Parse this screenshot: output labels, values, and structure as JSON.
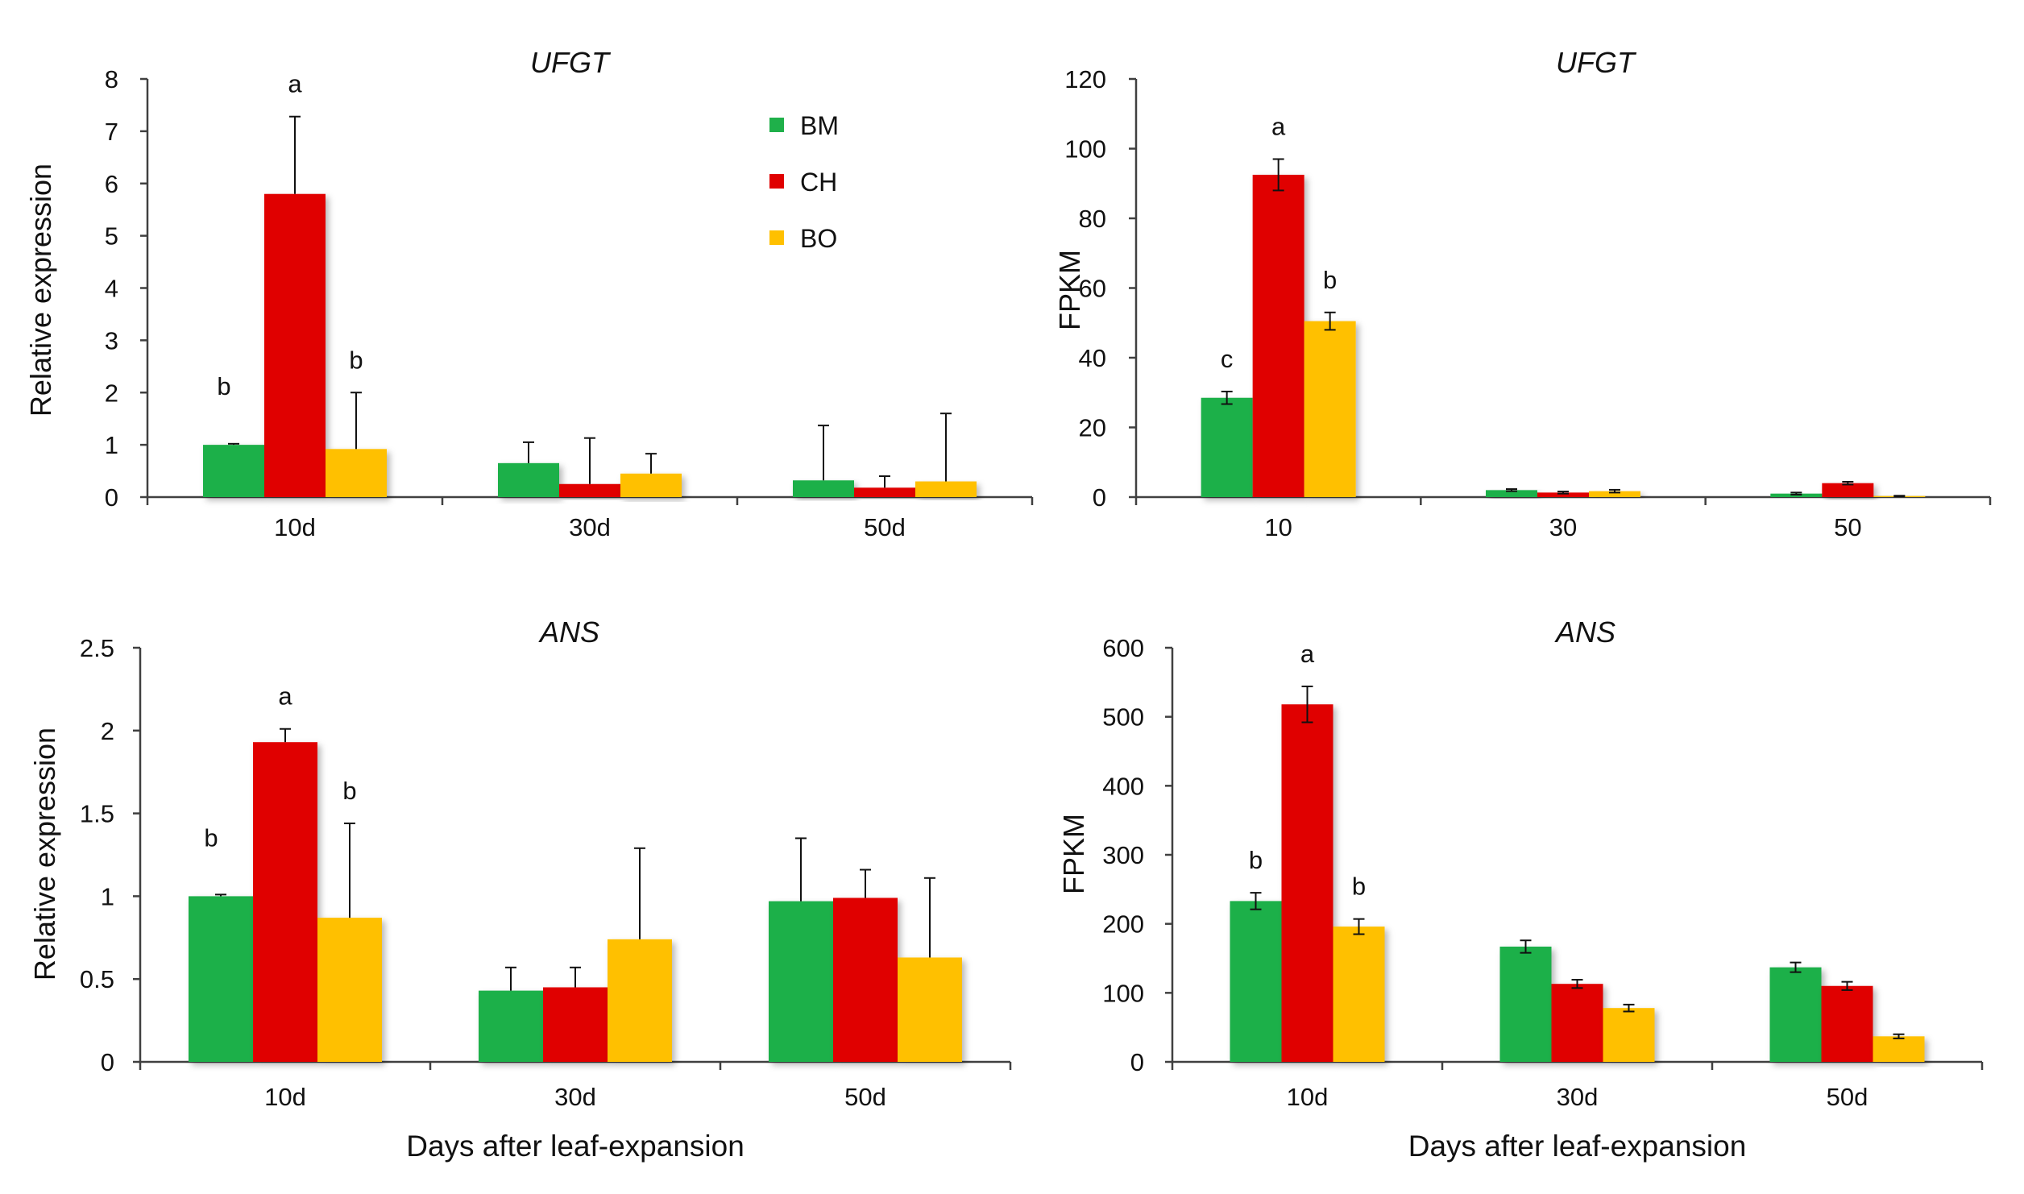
{
  "colors": {
    "BM": "#1fb04a",
    "CH": "#e00000",
    "BO": "#ffc000",
    "axis": "#404040",
    "err": "#111111"
  },
  "legend": [
    {
      "name": "BM",
      "label": "BM"
    },
    {
      "name": "CH",
      "label": "CH"
    },
    {
      "name": "BO",
      "label": "BO"
    }
  ],
  "chart_data": [
    {
      "type": "bar",
      "id": "ufgt-rel",
      "title": "UFGT",
      "ylabel": "Relative expression",
      "xlabel": "",
      "ylim": [
        0,
        8
      ],
      "yticks": [
        0,
        1,
        2,
        3,
        4,
        5,
        6,
        7,
        8
      ],
      "categories": [
        "10d",
        "30d",
        "50d"
      ],
      "error_style": "up",
      "series": [
        {
          "name": "BM",
          "values": [
            1.0,
            0.65,
            0.32
          ],
          "errors": [
            0.02,
            0.4,
            1.05
          ],
          "letters": [
            "b",
            "",
            ""
          ]
        },
        {
          "name": "CH",
          "values": [
            5.8,
            0.25,
            0.18
          ],
          "errors": [
            1.48,
            0.88,
            0.22
          ],
          "letters": [
            "a",
            "",
            ""
          ]
        },
        {
          "name": "BO",
          "values": [
            0.92,
            0.45,
            0.3
          ],
          "errors": [
            1.08,
            0.38,
            1.3
          ],
          "letters": [
            "b",
            "",
            ""
          ]
        }
      ]
    },
    {
      "type": "bar",
      "id": "ufgt-fpkm",
      "title": "UFGT",
      "ylabel": "FPKM",
      "xlabel": "",
      "ylim": [
        0,
        120
      ],
      "yticks": [
        0,
        20,
        40,
        60,
        80,
        100,
        120
      ],
      "categories": [
        "10",
        "30",
        "50"
      ],
      "error_style": "both",
      "series": [
        {
          "name": "BM",
          "values": [
            28.5,
            2.0,
            1.0
          ],
          "errors": [
            1.8,
            0.3,
            0.3
          ],
          "letters": [
            "c",
            "",
            ""
          ]
        },
        {
          "name": "CH",
          "values": [
            92.5,
            1.3,
            4.0
          ],
          "errors": [
            4.5,
            0.3,
            0.4
          ],
          "letters": [
            "a",
            "",
            ""
          ]
        },
        {
          "name": "BO",
          "values": [
            50.5,
            1.7,
            0.3
          ],
          "errors": [
            2.5,
            0.4,
            0.1
          ],
          "letters": [
            "b",
            "",
            ""
          ]
        }
      ]
    },
    {
      "type": "bar",
      "id": "ans-rel",
      "title": "ANS",
      "ylabel": "Relative expression",
      "xlabel": "Days after leaf-expansion",
      "ylim": [
        0,
        2.5
      ],
      "yticks": [
        0,
        0.5,
        1,
        1.5,
        2,
        2.5
      ],
      "categories": [
        "10d",
        "30d",
        "50d"
      ],
      "error_style": "up",
      "series": [
        {
          "name": "BM",
          "values": [
            1.0,
            0.43,
            0.97
          ],
          "errors": [
            0.01,
            0.14,
            0.38
          ],
          "letters": [
            "b",
            "",
            ""
          ]
        },
        {
          "name": "CH",
          "values": [
            1.93,
            0.45,
            0.99
          ],
          "errors": [
            0.08,
            0.12,
            0.17
          ],
          "letters": [
            "a",
            "",
            ""
          ]
        },
        {
          "name": "BO",
          "values": [
            0.87,
            0.74,
            0.63
          ],
          "errors": [
            0.57,
            0.55,
            0.48
          ],
          "letters": [
            "b",
            "",
            ""
          ]
        }
      ]
    },
    {
      "type": "bar",
      "id": "ans-fpkm",
      "title": "ANS",
      "ylabel": "FPKM",
      "xlabel": "Days after leaf-expansion",
      "ylim": [
        0,
        600
      ],
      "yticks": [
        0,
        100,
        200,
        300,
        400,
        500,
        600
      ],
      "categories": [
        "10d",
        "30d",
        "50d"
      ],
      "error_style": "both",
      "series": [
        {
          "name": "BM",
          "values": [
            233,
            167,
            137
          ],
          "errors": [
            12,
            9,
            7
          ],
          "letters": [
            "b",
            "",
            ""
          ]
        },
        {
          "name": "CH",
          "values": [
            518,
            113,
            110
          ],
          "errors": [
            26,
            6,
            6
          ],
          "letters": [
            "a",
            "",
            ""
          ]
        },
        {
          "name": "BO",
          "values": [
            196,
            78,
            37
          ],
          "errors": [
            11,
            5,
            3
          ],
          "letters": [
            "b",
            "",
            ""
          ]
        }
      ]
    }
  ]
}
